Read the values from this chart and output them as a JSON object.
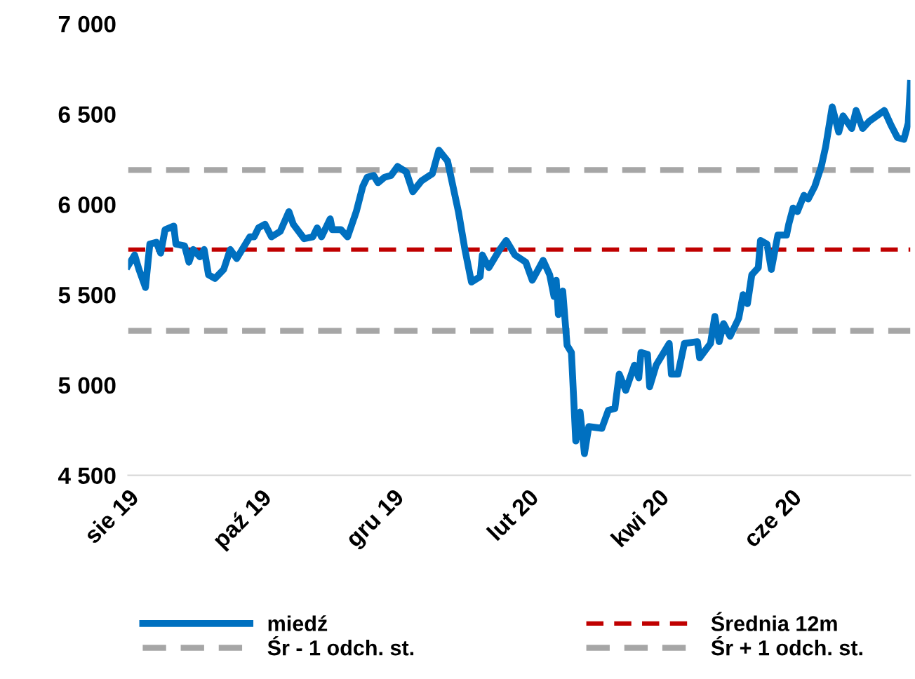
{
  "chart_data": {
    "type": "line",
    "x": [
      "2019-08-01",
      "2019-08-04",
      "2019-08-06",
      "2019-08-09",
      "2019-08-11",
      "2019-08-14",
      "2019-08-16",
      "2019-08-18",
      "2019-08-22",
      "2019-08-23",
      "2019-08-27",
      "2019-08-29",
      "2019-08-31",
      "2019-09-03",
      "2019-09-05",
      "2019-09-07",
      "2019-09-10",
      "2019-09-14",
      "2019-09-17",
      "2019-09-20",
      "2019-09-26",
      "2019-09-28",
      "2019-09-30",
      "2019-10-03",
      "2019-10-06",
      "2019-10-10",
      "2019-10-14",
      "2019-10-16",
      "2019-10-21",
      "2019-10-25",
      "2019-10-27",
      "2019-10-29",
      "2019-11-02",
      "2019-11-03",
      "2019-11-07",
      "2019-11-10",
      "2019-11-14",
      "2019-11-17",
      "2019-11-19",
      "2019-11-22",
      "2019-11-24",
      "2019-11-27",
      "2019-11-30",
      "2019-12-03",
      "2019-12-07",
      "2019-12-10",
      "2019-12-14",
      "2019-12-19",
      "2019-12-22",
      "2019-12-26",
      "2019-12-31",
      "2020-01-03",
      "2020-01-06",
      "2020-01-10",
      "2020-01-11",
      "2020-01-14",
      "2020-01-19",
      "2020-01-22",
      "2020-01-26",
      "2020-01-31",
      "2020-02-03",
      "2020-02-08",
      "2020-02-11",
      "2020-02-13",
      "2020-02-14",
      "2020-02-15",
      "2020-02-17",
      "2020-02-19",
      "2020-02-21",
      "2020-02-23",
      "2020-02-25",
      "2020-02-27",
      "2020-02-29",
      "2020-03-06",
      "2020-03-09",
      "2020-03-12",
      "2020-03-14",
      "2020-03-17",
      "2020-03-21",
      "2020-03-23",
      "2020-03-24",
      "2020-03-27",
      "2020-03-28",
      "2020-03-31",
      "2020-04-06",
      "2020-04-07",
      "2020-04-10",
      "2020-04-13",
      "2020-04-19",
      "2020-04-20",
      "2020-04-25",
      "2020-04-27",
      "2020-04-29",
      "2020-05-01",
      "2020-05-04",
      "2020-05-08",
      "2020-05-10",
      "2020-05-12",
      "2020-05-14",
      "2020-05-17",
      "2020-05-18",
      "2020-05-21",
      "2020-05-23",
      "2020-05-26",
      "2020-05-30",
      "2020-05-31",
      "2020-06-02",
      "2020-06-04",
      "2020-06-07",
      "2020-06-09",
      "2020-06-12",
      "2020-06-15",
      "2020-06-17",
      "2020-06-20",
      "2020-06-23",
      "2020-06-25",
      "2020-06-29",
      "2020-07-01",
      "2020-07-04",
      "2020-07-07",
      "2020-07-14",
      "2020-07-17",
      "2020-07-20",
      "2020-07-23",
      "2020-07-25",
      "2020-07-26"
    ],
    "series": [
      {
        "name": "miedź",
        "color": "#0070c0",
        "values": [
          5660,
          5720,
          5640,
          5540,
          5780,
          5790,
          5730,
          5860,
          5880,
          5780,
          5770,
          5680,
          5750,
          5710,
          5750,
          5610,
          5590,
          5640,
          5750,
          5700,
          5820,
          5820,
          5870,
          5890,
          5820,
          5850,
          5960,
          5890,
          5810,
          5820,
          5870,
          5820,
          5920,
          5860,
          5860,
          5820,
          5960,
          6100,
          6150,
          6160,
          6120,
          6150,
          6160,
          6210,
          6180,
          6070,
          6130,
          6170,
          6300,
          6240,
          5960,
          5750,
          5570,
          5600,
          5720,
          5650,
          5750,
          5800,
          5720,
          5680,
          5580,
          5690,
          5610,
          5490,
          5580,
          5390,
          5520,
          5220,
          5180,
          4690,
          4850,
          4620,
          4770,
          4760,
          4860,
          4870,
          5060,
          4970,
          5110,
          5040,
          5180,
          5170,
          4990,
          5110,
          5230,
          5060,
          5060,
          5230,
          5240,
          5150,
          5230,
          5380,
          5240,
          5340,
          5270,
          5370,
          5500,
          5450,
          5610,
          5650,
          5800,
          5780,
          5640,
          5830,
          5830,
          5890,
          5980,
          5960,
          6050,
          6030,
          6100,
          6210,
          6320,
          6540,
          6400,
          6490,
          6420,
          6520,
          6420,
          6460,
          6520,
          6440,
          6370,
          6360,
          6450,
          6670
        ]
      }
    ],
    "ref_lines": [
      {
        "axis": "y",
        "value": 5750,
        "label": "Średnia 12m",
        "color": "#c00000",
        "line_style": "dashed"
      },
      {
        "axis": "y",
        "value": 5300,
        "label": "Śr - 1 odch. st.",
        "color": "#a6a6a6",
        "line_style": "dashed"
      },
      {
        "axis": "y",
        "value": 6190,
        "label": "Śr + 1 odch. st.",
        "color": "#a6a6a6",
        "line_style": "dashed"
      }
    ],
    "xlim": [
      "2019-08-01",
      "2020-07-26"
    ],
    "xticks": [
      {
        "value": "2019-08-01",
        "label": "sie 19"
      },
      {
        "value": "2019-10-01",
        "label": "paź 19"
      },
      {
        "value": "2019-12-01",
        "label": "gru 19"
      },
      {
        "value": "2020-02-01",
        "label": "lut 20"
      },
      {
        "value": "2020-04-01",
        "label": "kwi 20"
      },
      {
        "value": "2020-06-01",
        "label": "cze 20"
      }
    ],
    "ylim": [
      4500,
      7000
    ],
    "yticks": [
      {
        "value": 4500,
        "label": "4 500"
      },
      {
        "value": 5000,
        "label": "5 000"
      },
      {
        "value": 5500,
        "label": "5 500"
      },
      {
        "value": 6000,
        "label": "6 000"
      },
      {
        "value": 6500,
        "label": "6 500"
      },
      {
        "value": 7000,
        "label": "7 000"
      }
    ],
    "grid": false,
    "legend": "bottom"
  }
}
